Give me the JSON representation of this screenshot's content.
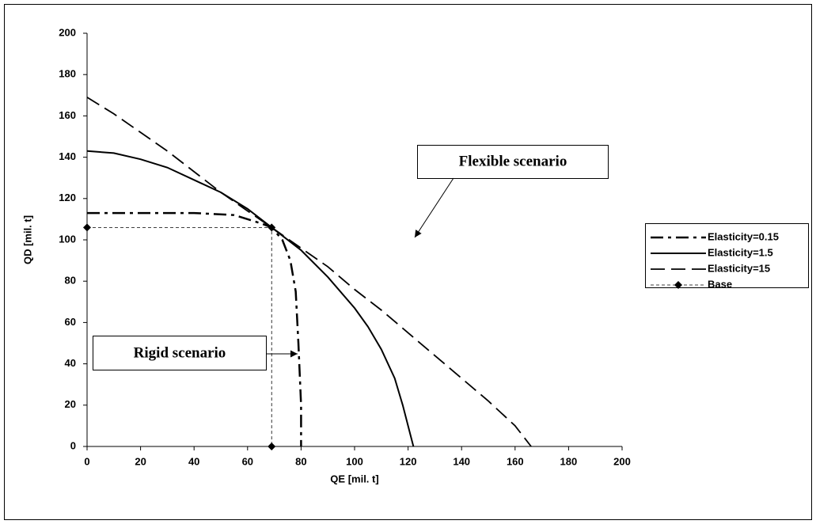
{
  "chart_data": {
    "type": "line",
    "xlabel": "QE [mil. t]",
    "ylabel": "QD [mil. t]",
    "xlim": [
      0,
      200
    ],
    "ylim": [
      0,
      200
    ],
    "xticks": [
      0,
      20,
      40,
      60,
      80,
      100,
      120,
      140,
      160,
      180,
      200
    ],
    "yticks": [
      0,
      20,
      40,
      60,
      80,
      100,
      120,
      140,
      160,
      180,
      200
    ],
    "grid": false,
    "legend": "right",
    "series": [
      {
        "name": "Elasticity=0.15",
        "color": "#000000",
        "style": "dash-dot",
        "x": [
          0,
          20,
          40,
          55,
          65,
          69,
          73,
          76,
          78,
          79,
          80,
          80
        ],
        "values": [
          113,
          113,
          113,
          112,
          108,
          106,
          100,
          90,
          75,
          50,
          20,
          0
        ]
      },
      {
        "name": "Elasticity=1.5",
        "color": "#000000",
        "style": "solid",
        "x": [
          0,
          10,
          20,
          30,
          40,
          50,
          60,
          69,
          80,
          90,
          100,
          105,
          110,
          115,
          118,
          121,
          122
        ],
        "values": [
          143,
          142,
          139,
          135,
          129,
          123,
          115,
          106,
          95,
          82,
          67,
          58,
          47,
          33,
          20,
          5,
          0
        ]
      },
      {
        "name": "Elasticity=15",
        "color": "#000000",
        "style": "long-dash",
        "x": [
          0,
          10,
          20,
          30,
          40,
          50,
          60,
          69,
          80,
          90,
          100,
          110,
          120,
          130,
          140,
          150,
          160,
          166
        ],
        "values": [
          169,
          161,
          152,
          143,
          133,
          123,
          114,
          106,
          96,
          87,
          76,
          66,
          55,
          44,
          33,
          22,
          10,
          0
        ]
      },
      {
        "name": "Base",
        "color": "#000000",
        "style": "dotted",
        "marker": "diamond",
        "x": [
          0,
          69,
          69
        ],
        "values": [
          106,
          106,
          0
        ]
      }
    ],
    "annotations": [
      {
        "text": "Flexible scenario",
        "x": 133,
        "y": 48
      },
      {
        "text": "Rigid scenario",
        "x": 80,
        "y": 44
      }
    ]
  }
}
